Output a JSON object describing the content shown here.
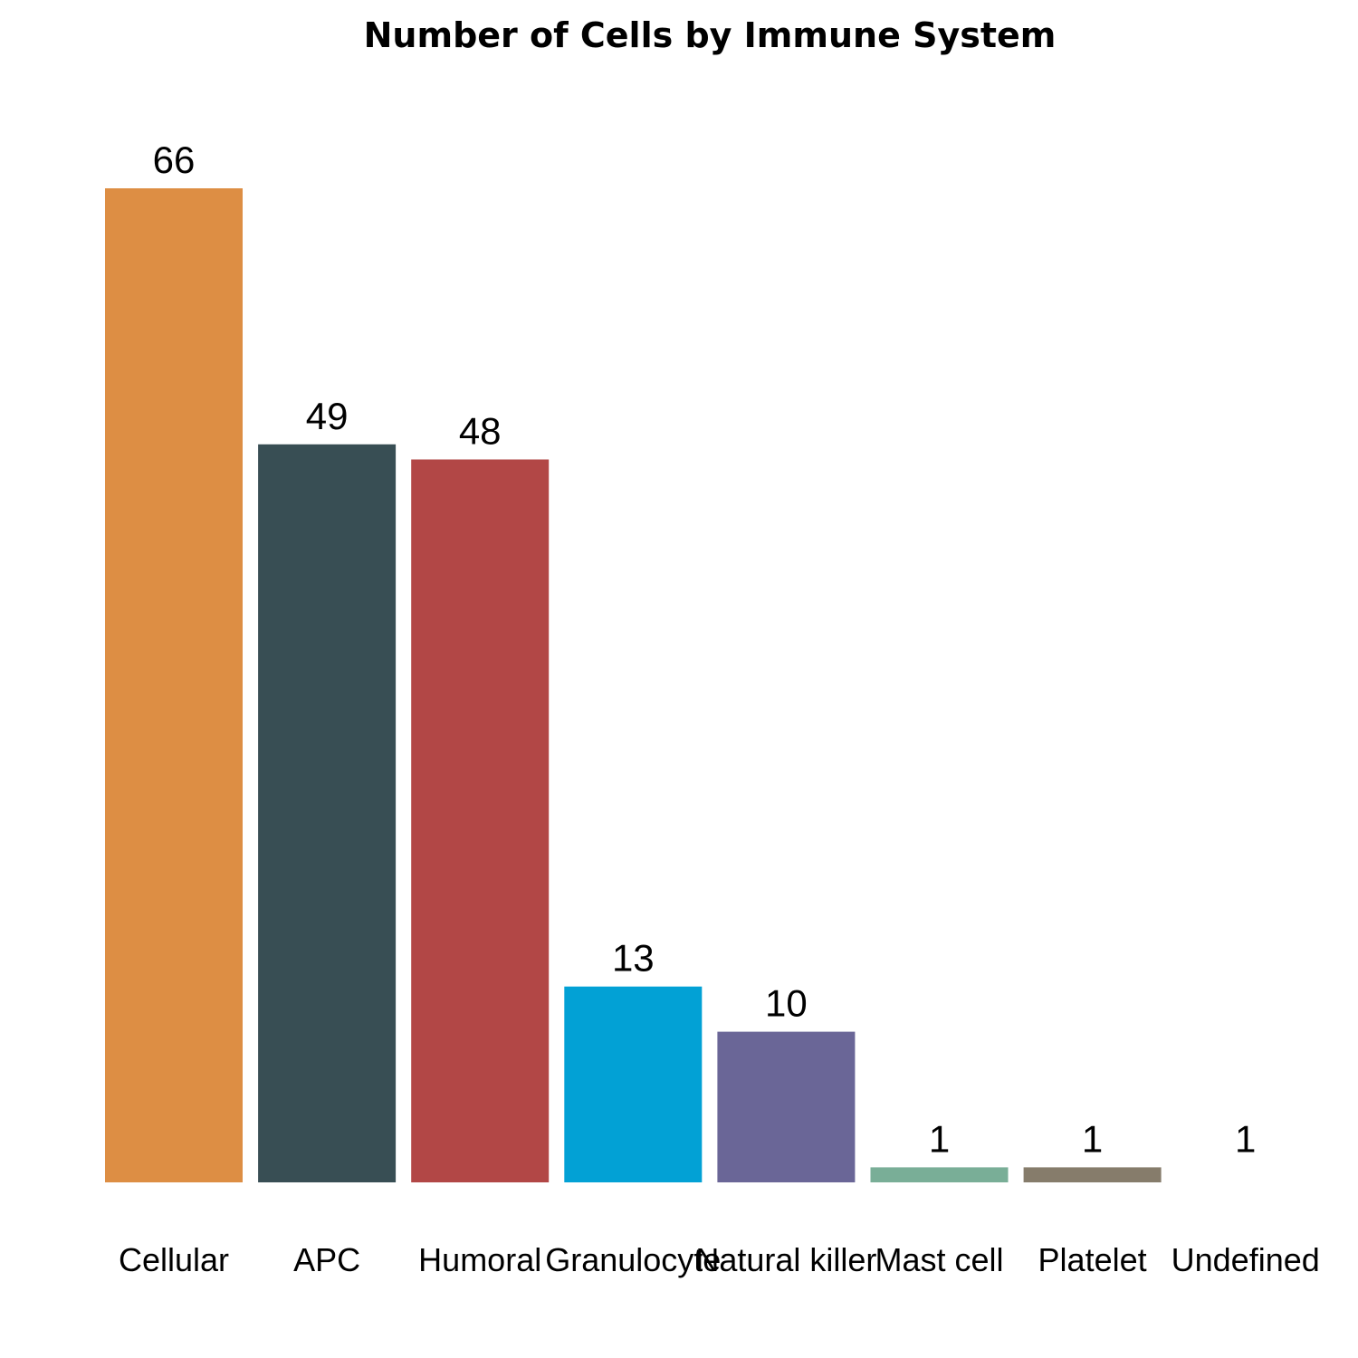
{
  "chart_data": {
    "type": "bar",
    "title": "Number of Cells by Immune System",
    "xlabel": "",
    "ylabel": "",
    "categories": [
      "Cellular",
      "APC",
      "Humoral",
      "Granulocyte",
      "Natural killer",
      "Mast cell",
      "Platelet",
      "Undefined"
    ],
    "values": [
      66,
      49,
      48,
      13,
      10,
      1,
      1,
      1
    ],
    "colors": [
      "#DD8E44",
      "#384E54",
      "#B24746",
      "#02A1D5",
      "#6A6697",
      "#79AE97",
      "#867C6B",
      "#FFFFFF"
    ],
    "ylim": [
      0,
      66
    ],
    "grid": false,
    "legend": "none",
    "data_labels": true
  }
}
